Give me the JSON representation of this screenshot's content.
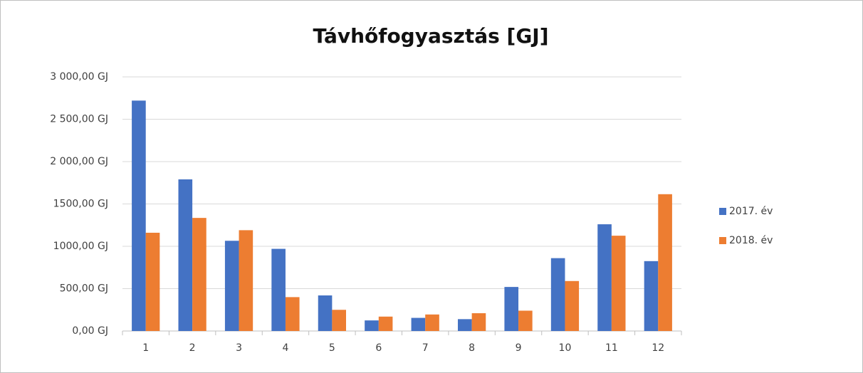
{
  "chart_data": {
    "type": "bar",
    "title": "Távhőfogyasztás [GJ]",
    "categories": [
      "1",
      "2",
      "3",
      "4",
      "5",
      "6",
      "7",
      "8",
      "9",
      "10",
      "11",
      "12"
    ],
    "series": [
      {
        "name": "2017. év",
        "color": "#4472c4",
        "values": [
          2720,
          1790,
          1065,
          970,
          420,
          125,
          155,
          140,
          520,
          860,
          1260,
          825
        ]
      },
      {
        "name": "2018. év",
        "color": "#ed7d31",
        "values": [
          1160,
          1335,
          1190,
          400,
          250,
          170,
          195,
          210,
          240,
          590,
          1125,
          1615
        ]
      }
    ],
    "ylim": [
      0,
      3000
    ],
    "yticks": [
      {
        "value": 0,
        "label": "0,00 GJ"
      },
      {
        "value": 500,
        "label": "500,00 GJ"
      },
      {
        "value": 1000,
        "label": "1000,00 GJ"
      },
      {
        "value": 1500,
        "label": "1500,00 GJ"
      },
      {
        "value": 2000,
        "label": "2 000,00 GJ"
      },
      {
        "value": 2500,
        "label": "2 500,00 GJ"
      },
      {
        "value": 3000,
        "label": "3 000,00 GJ"
      }
    ],
    "grid": true,
    "legend": "right"
  }
}
